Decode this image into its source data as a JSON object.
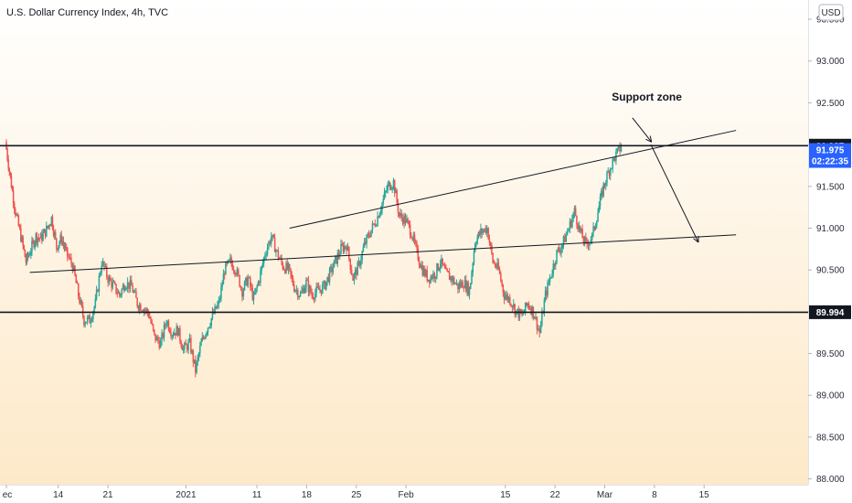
{
  "chart_data": {
    "type": "candlestick",
    "title": "U.S. Dollar Currency Index, 4h, TVC",
    "currency": "USD",
    "ylim": [
      87.93,
      93.73
    ],
    "y_ticks": [
      "93.500",
      "93.000",
      "92.500",
      "92.000",
      "91.500",
      "91.000",
      "90.500",
      "90.000",
      "89.500",
      "89.000",
      "88.500",
      "88.000"
    ],
    "x_ticks": [
      {
        "label": "ec",
        "day": 6.7
      },
      {
        "label": "14",
        "day": 14
      },
      {
        "label": "21",
        "day": 21
      },
      {
        "label": "2021",
        "day": 32
      },
      {
        "label": "11",
        "day": 42
      },
      {
        "label": "18",
        "day": 49
      },
      {
        "label": "25",
        "day": 56
      },
      {
        "label": "Feb",
        "day": 63
      },
      {
        "label": "15",
        "day": 77
      },
      {
        "label": "22",
        "day": 84
      },
      {
        "label": "Mar",
        "day": 91
      },
      {
        "label": "8",
        "day": 98
      },
      {
        "label": "15",
        "day": 105
      }
    ],
    "colors": {
      "up": "#26a69a",
      "down": "#ef5350",
      "bg_top": "#ffffff",
      "bg_bottom": "#fde9c8",
      "price_tag": "#2962ff"
    },
    "horizontal_levels": [
      {
        "value": 91.987,
        "label": "91.987"
      },
      {
        "value": 89.994,
        "label": "89.994"
      }
    ],
    "current_price": {
      "value": 91.975,
      "label": "91.975",
      "countdown": "02:22:35"
    },
    "channel_upper": {
      "start": {
        "day": 46.6,
        "value": 91.0
      },
      "end": {
        "day": 109.5,
        "value": 92.17
      }
    },
    "channel_lower": {
      "start": {
        "day": 10.0,
        "value": 90.47
      },
      "end": {
        "day": 109.5,
        "value": 90.92
      }
    },
    "projection_arrow": {
      "start": {
        "day": 97.5,
        "value": 92.0
      },
      "end": {
        "day": 104.2,
        "value": 90.83
      }
    },
    "annotations": [
      {
        "text": "Support zone",
        "day": 92.0,
        "value": 92.57
      }
    ],
    "annotation_arrow": {
      "start": {
        "day": 94.9,
        "value": 92.32
      },
      "end": {
        "day": 97.6,
        "value": 92.03
      }
    },
    "path": [
      {
        "day": 6.7,
        "value": 92.03
      },
      {
        "day": 7.4,
        "value": 91.6
      },
      {
        "day": 8.1,
        "value": 91.2
      },
      {
        "day": 8.9,
        "value": 90.9
      },
      {
        "day": 9.6,
        "value": 90.6
      },
      {
        "day": 10.3,
        "value": 90.75
      },
      {
        "day": 11.0,
        "value": 90.9
      },
      {
        "day": 11.7,
        "value": 90.88
      },
      {
        "day": 12.5,
        "value": 90.98
      },
      {
        "day": 13.2,
        "value": 91.12
      },
      {
        "day": 13.9,
        "value": 90.78
      },
      {
        "day": 14.6,
        "value": 90.88
      },
      {
        "day": 15.3,
        "value": 90.7
      },
      {
        "day": 16.2,
        "value": 90.55
      },
      {
        "day": 17.0,
        "value": 90.2
      },
      {
        "day": 17.8,
        "value": 89.9
      },
      {
        "day": 18.6,
        "value": 89.9
      },
      {
        "day": 19.4,
        "value": 90.1
      },
      {
        "day": 20.3,
        "value": 90.6
      },
      {
        "day": 21.2,
        "value": 90.4
      },
      {
        "day": 22.0,
        "value": 90.3
      },
      {
        "day": 22.8,
        "value": 90.2
      },
      {
        "day": 23.6,
        "value": 90.35
      },
      {
        "day": 24.5,
        "value": 90.3
      },
      {
        "day": 25.3,
        "value": 90.1
      },
      {
        "day": 26.1,
        "value": 90.05
      },
      {
        "day": 26.9,
        "value": 89.98
      },
      {
        "day": 27.7,
        "value": 89.7
      },
      {
        "day": 28.6,
        "value": 89.62
      },
      {
        "day": 29.4,
        "value": 89.9
      },
      {
        "day": 30.2,
        "value": 89.75
      },
      {
        "day": 31.0,
        "value": 89.78
      },
      {
        "day": 31.8,
        "value": 89.55
      },
      {
        "day": 32.7,
        "value": 89.62
      },
      {
        "day": 33.5,
        "value": 89.3
      },
      {
        "day": 34.3,
        "value": 89.62
      },
      {
        "day": 35.1,
        "value": 89.8
      },
      {
        "day": 35.9,
        "value": 89.95
      },
      {
        "day": 36.8,
        "value": 90.1
      },
      {
        "day": 37.6,
        "value": 90.5
      },
      {
        "day": 38.4,
        "value": 90.6
      },
      {
        "day": 39.2,
        "value": 90.5
      },
      {
        "day": 40.1,
        "value": 90.25
      },
      {
        "day": 40.9,
        "value": 90.4
      },
      {
        "day": 41.7,
        "value": 90.15
      },
      {
        "day": 42.5,
        "value": 90.4
      },
      {
        "day": 43.3,
        "value": 90.7
      },
      {
        "day": 44.2,
        "value": 90.9
      },
      {
        "day": 45.0,
        "value": 90.7
      },
      {
        "day": 45.8,
        "value": 90.55
      },
      {
        "day": 46.6,
        "value": 90.5
      },
      {
        "day": 47.4,
        "value": 90.3
      },
      {
        "day": 48.3,
        "value": 90.2
      },
      {
        "day": 49.1,
        "value": 90.35
      },
      {
        "day": 49.9,
        "value": 90.2
      },
      {
        "day": 50.7,
        "value": 90.25
      },
      {
        "day": 51.6,
        "value": 90.3
      },
      {
        "day": 52.4,
        "value": 90.45
      },
      {
        "day": 53.2,
        "value": 90.6
      },
      {
        "day": 54.0,
        "value": 90.75
      },
      {
        "day": 54.8,
        "value": 90.8
      },
      {
        "day": 55.7,
        "value": 90.4
      },
      {
        "day": 56.5,
        "value": 90.55
      },
      {
        "day": 57.3,
        "value": 90.8
      },
      {
        "day": 58.1,
        "value": 90.95
      },
      {
        "day": 59.0,
        "value": 91.1
      },
      {
        "day": 59.8,
        "value": 91.3
      },
      {
        "day": 60.6,
        "value": 91.5
      },
      {
        "day": 61.4,
        "value": 91.55
      },
      {
        "day": 62.2,
        "value": 91.15
      },
      {
        "day": 63.1,
        "value": 91.1
      },
      {
        "day": 63.9,
        "value": 90.95
      },
      {
        "day": 64.7,
        "value": 90.7
      },
      {
        "day": 65.5,
        "value": 90.5
      },
      {
        "day": 66.3,
        "value": 90.4
      },
      {
        "day": 67.2,
        "value": 90.45
      },
      {
        "day": 68.0,
        "value": 90.6
      },
      {
        "day": 68.8,
        "value": 90.45
      },
      {
        "day": 69.6,
        "value": 90.4
      },
      {
        "day": 70.5,
        "value": 90.3
      },
      {
        "day": 71.3,
        "value": 90.35
      },
      {
        "day": 72.1,
        "value": 90.25
      },
      {
        "day": 72.9,
        "value": 90.85
      },
      {
        "day": 73.7,
        "value": 90.95
      },
      {
        "day": 74.6,
        "value": 91.0
      },
      {
        "day": 75.4,
        "value": 90.6
      },
      {
        "day": 76.2,
        "value": 90.5
      },
      {
        "day": 77.0,
        "value": 90.2
      },
      {
        "day": 77.8,
        "value": 90.15
      },
      {
        "day": 78.7,
        "value": 90.0
      },
      {
        "day": 79.5,
        "value": 89.95
      },
      {
        "day": 80.3,
        "value": 90.1
      },
      {
        "day": 81.1,
        "value": 90.0
      },
      {
        "day": 82.0,
        "value": 89.75
      },
      {
        "day": 82.8,
        "value": 90.2
      },
      {
        "day": 83.6,
        "value": 90.45
      },
      {
        "day": 84.4,
        "value": 90.7
      },
      {
        "day": 85.2,
        "value": 90.8
      },
      {
        "day": 86.1,
        "value": 91.0
      },
      {
        "day": 86.9,
        "value": 91.2
      },
      {
        "day": 87.7,
        "value": 90.95
      },
      {
        "day": 88.5,
        "value": 90.8
      },
      {
        "day": 89.4,
        "value": 90.9
      },
      {
        "day": 90.2,
        "value": 91.2
      },
      {
        "day": 91.0,
        "value": 91.5
      },
      {
        "day": 91.8,
        "value": 91.7
      },
      {
        "day": 92.6,
        "value": 91.85
      },
      {
        "day": 93.5,
        "value": 91.975
      }
    ]
  }
}
